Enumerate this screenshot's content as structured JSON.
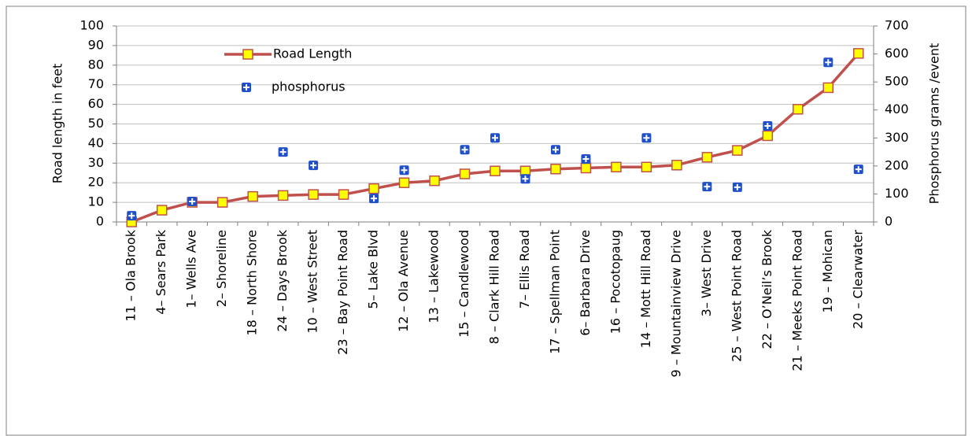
{
  "chart_data": {
    "type": "line-scatter",
    "y_label": "Road length in feet",
    "y2_label": "Phosphorus grams /event",
    "categories": [
      "11 – Ola Brook",
      "4– Sears Park",
      "1– Wells Ave",
      "2– Shoreline",
      "18 – North Shore",
      "24 – Days Brook",
      "10 – West Street",
      "23 – Bay Point Road",
      "5– Lake Blvd",
      "12 – Ola Avenue",
      "13 – Lakewood",
      "15 – Candlewood",
      "8 – Clark Hill Road",
      "7– Ellis Road",
      "17 – Spellman Point",
      "6– Barbara Drive",
      "16 – Pocotopaug",
      "14 – Mott Hill Road",
      "9 – Mountainview Drive",
      "3– West Drive",
      "25 – West Point Road",
      "22 – O’Neil’s Brook",
      "21 – Meeks Point Road",
      "19 – Mohican",
      "20 – Clearwater"
    ],
    "series": [
      {
        "name": "Road Length",
        "color": "#c0504d",
        "marker_color": "#ffff00",
        "style": "line",
        "values": [
          0,
          6,
          10,
          10,
          13,
          13.5,
          14,
          14,
          17,
          20,
          21,
          24.5,
          26,
          26,
          27,
          27.5,
          28,
          28,
          29,
          33,
          36.5,
          44,
          57.5,
          68.5,
          86
        ]
      },
      {
        "name": "phosphorus",
        "color": "#1f4fc9",
        "style": "markers",
        "axis": "y2",
        "values": [
          22,
          null,
          73,
          null,
          null,
          250,
          202,
          null,
          84,
          185,
          null,
          258,
          300,
          154,
          258,
          225,
          null,
          300,
          null,
          126,
          124,
          343,
          null,
          570,
          188
        ]
      }
    ],
    "ylim": [
      0,
      100
    ],
    "yticks": [
      0,
      10,
      20,
      30,
      40,
      50,
      60,
      70,
      80,
      90,
      100
    ],
    "y2lim": [
      0,
      700
    ],
    "y2ticks": [
      0,
      100,
      200,
      300,
      400,
      500,
      600,
      700
    ],
    "grid": true,
    "legend": "top-left"
  }
}
